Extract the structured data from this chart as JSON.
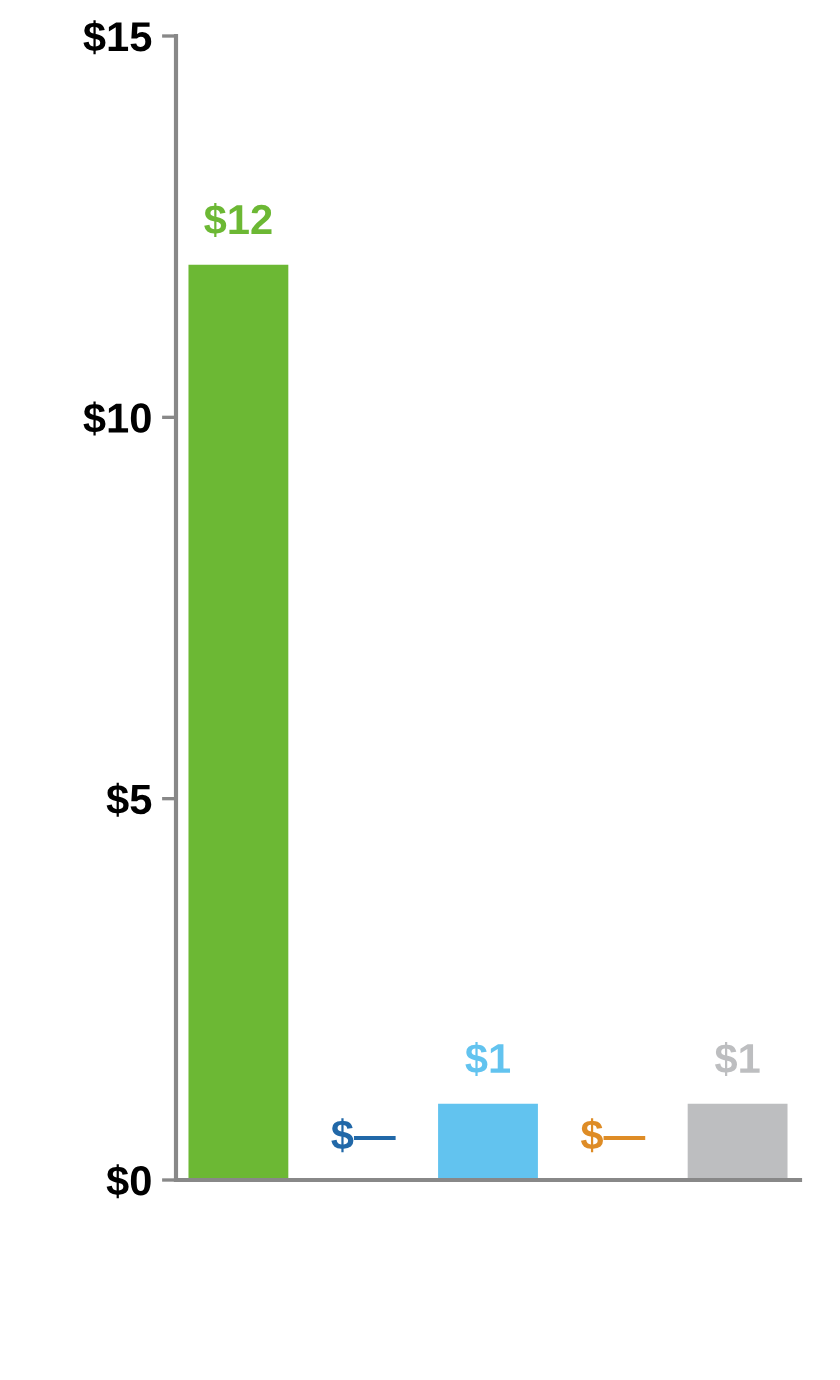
{
  "chart_data": {
    "type": "bar",
    "categories": [
      null,
      null,
      null,
      null,
      null
    ],
    "values": [
      12,
      0,
      1,
      0,
      1
    ],
    "colors": [
      "#6cb834",
      "#2168a8",
      "#62c3ef",
      "#de8c26",
      "#bdbec0"
    ],
    "value_labels": [
      "$12",
      "$—",
      "$1",
      "$—",
      "$1"
    ],
    "ylim": [
      0,
      15
    ],
    "yticks": [
      {
        "value": 0,
        "label": "$0"
      },
      {
        "value": 5,
        "label": "$5"
      },
      {
        "value": 10,
        "label": "$10"
      },
      {
        "value": 15,
        "label": "$15"
      }
    ],
    "grid": false,
    "legend": false
  }
}
